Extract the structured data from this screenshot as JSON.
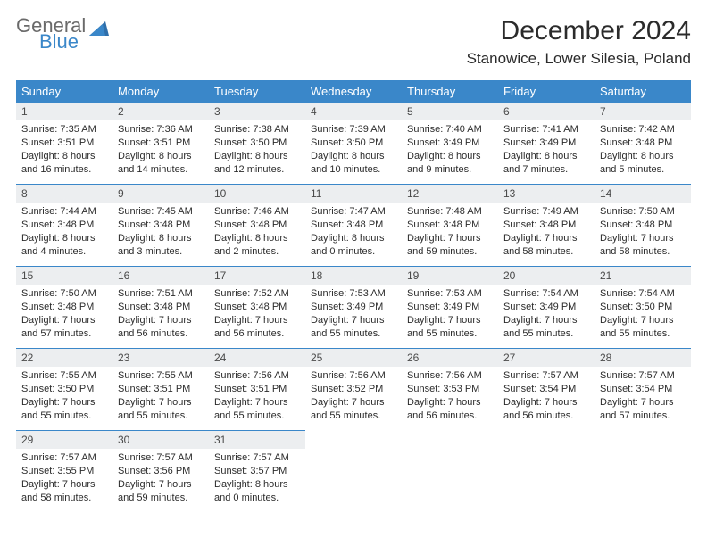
{
  "brand": {
    "line1": "General",
    "line2": "Blue"
  },
  "title": "December 2024",
  "location": "Stanowice, Lower Silesia, Poland",
  "colors": {
    "header_bg": "#3a87c9",
    "header_text": "#ffffff",
    "daynum_bg": "#eceef0",
    "border": "#3a87c9",
    "text": "#2b2b2b"
  },
  "weekdays": [
    "Sunday",
    "Monday",
    "Tuesday",
    "Wednesday",
    "Thursday",
    "Friday",
    "Saturday"
  ],
  "weeks": [
    [
      {
        "n": "1",
        "sr": "Sunrise: 7:35 AM",
        "ss": "Sunset: 3:51 PM",
        "d1": "Daylight: 8 hours",
        "d2": "and 16 minutes."
      },
      {
        "n": "2",
        "sr": "Sunrise: 7:36 AM",
        "ss": "Sunset: 3:51 PM",
        "d1": "Daylight: 8 hours",
        "d2": "and 14 minutes."
      },
      {
        "n": "3",
        "sr": "Sunrise: 7:38 AM",
        "ss": "Sunset: 3:50 PM",
        "d1": "Daylight: 8 hours",
        "d2": "and 12 minutes."
      },
      {
        "n": "4",
        "sr": "Sunrise: 7:39 AM",
        "ss": "Sunset: 3:50 PM",
        "d1": "Daylight: 8 hours",
        "d2": "and 10 minutes."
      },
      {
        "n": "5",
        "sr": "Sunrise: 7:40 AM",
        "ss": "Sunset: 3:49 PM",
        "d1": "Daylight: 8 hours",
        "d2": "and 9 minutes."
      },
      {
        "n": "6",
        "sr": "Sunrise: 7:41 AM",
        "ss": "Sunset: 3:49 PM",
        "d1": "Daylight: 8 hours",
        "d2": "and 7 minutes."
      },
      {
        "n": "7",
        "sr": "Sunrise: 7:42 AM",
        "ss": "Sunset: 3:48 PM",
        "d1": "Daylight: 8 hours",
        "d2": "and 5 minutes."
      }
    ],
    [
      {
        "n": "8",
        "sr": "Sunrise: 7:44 AM",
        "ss": "Sunset: 3:48 PM",
        "d1": "Daylight: 8 hours",
        "d2": "and 4 minutes."
      },
      {
        "n": "9",
        "sr": "Sunrise: 7:45 AM",
        "ss": "Sunset: 3:48 PM",
        "d1": "Daylight: 8 hours",
        "d2": "and 3 minutes."
      },
      {
        "n": "10",
        "sr": "Sunrise: 7:46 AM",
        "ss": "Sunset: 3:48 PM",
        "d1": "Daylight: 8 hours",
        "d2": "and 2 minutes."
      },
      {
        "n": "11",
        "sr": "Sunrise: 7:47 AM",
        "ss": "Sunset: 3:48 PM",
        "d1": "Daylight: 8 hours",
        "d2": "and 0 minutes."
      },
      {
        "n": "12",
        "sr": "Sunrise: 7:48 AM",
        "ss": "Sunset: 3:48 PM",
        "d1": "Daylight: 7 hours",
        "d2": "and 59 minutes."
      },
      {
        "n": "13",
        "sr": "Sunrise: 7:49 AM",
        "ss": "Sunset: 3:48 PM",
        "d1": "Daylight: 7 hours",
        "d2": "and 58 minutes."
      },
      {
        "n": "14",
        "sr": "Sunrise: 7:50 AM",
        "ss": "Sunset: 3:48 PM",
        "d1": "Daylight: 7 hours",
        "d2": "and 58 minutes."
      }
    ],
    [
      {
        "n": "15",
        "sr": "Sunrise: 7:50 AM",
        "ss": "Sunset: 3:48 PM",
        "d1": "Daylight: 7 hours",
        "d2": "and 57 minutes."
      },
      {
        "n": "16",
        "sr": "Sunrise: 7:51 AM",
        "ss": "Sunset: 3:48 PM",
        "d1": "Daylight: 7 hours",
        "d2": "and 56 minutes."
      },
      {
        "n": "17",
        "sr": "Sunrise: 7:52 AM",
        "ss": "Sunset: 3:48 PM",
        "d1": "Daylight: 7 hours",
        "d2": "and 56 minutes."
      },
      {
        "n": "18",
        "sr": "Sunrise: 7:53 AM",
        "ss": "Sunset: 3:49 PM",
        "d1": "Daylight: 7 hours",
        "d2": "and 55 minutes."
      },
      {
        "n": "19",
        "sr": "Sunrise: 7:53 AM",
        "ss": "Sunset: 3:49 PM",
        "d1": "Daylight: 7 hours",
        "d2": "and 55 minutes."
      },
      {
        "n": "20",
        "sr": "Sunrise: 7:54 AM",
        "ss": "Sunset: 3:49 PM",
        "d1": "Daylight: 7 hours",
        "d2": "and 55 minutes."
      },
      {
        "n": "21",
        "sr": "Sunrise: 7:54 AM",
        "ss": "Sunset: 3:50 PM",
        "d1": "Daylight: 7 hours",
        "d2": "and 55 minutes."
      }
    ],
    [
      {
        "n": "22",
        "sr": "Sunrise: 7:55 AM",
        "ss": "Sunset: 3:50 PM",
        "d1": "Daylight: 7 hours",
        "d2": "and 55 minutes."
      },
      {
        "n": "23",
        "sr": "Sunrise: 7:55 AM",
        "ss": "Sunset: 3:51 PM",
        "d1": "Daylight: 7 hours",
        "d2": "and 55 minutes."
      },
      {
        "n": "24",
        "sr": "Sunrise: 7:56 AM",
        "ss": "Sunset: 3:51 PM",
        "d1": "Daylight: 7 hours",
        "d2": "and 55 minutes."
      },
      {
        "n": "25",
        "sr": "Sunrise: 7:56 AM",
        "ss": "Sunset: 3:52 PM",
        "d1": "Daylight: 7 hours",
        "d2": "and 55 minutes."
      },
      {
        "n": "26",
        "sr": "Sunrise: 7:56 AM",
        "ss": "Sunset: 3:53 PM",
        "d1": "Daylight: 7 hours",
        "d2": "and 56 minutes."
      },
      {
        "n": "27",
        "sr": "Sunrise: 7:57 AM",
        "ss": "Sunset: 3:54 PM",
        "d1": "Daylight: 7 hours",
        "d2": "and 56 minutes."
      },
      {
        "n": "28",
        "sr": "Sunrise: 7:57 AM",
        "ss": "Sunset: 3:54 PM",
        "d1": "Daylight: 7 hours",
        "d2": "and 57 minutes."
      }
    ],
    [
      {
        "n": "29",
        "sr": "Sunrise: 7:57 AM",
        "ss": "Sunset: 3:55 PM",
        "d1": "Daylight: 7 hours",
        "d2": "and 58 minutes."
      },
      {
        "n": "30",
        "sr": "Sunrise: 7:57 AM",
        "ss": "Sunset: 3:56 PM",
        "d1": "Daylight: 7 hours",
        "d2": "and 59 minutes."
      },
      {
        "n": "31",
        "sr": "Sunrise: 7:57 AM",
        "ss": "Sunset: 3:57 PM",
        "d1": "Daylight: 8 hours",
        "d2": "and 0 minutes."
      },
      null,
      null,
      null,
      null
    ]
  ]
}
